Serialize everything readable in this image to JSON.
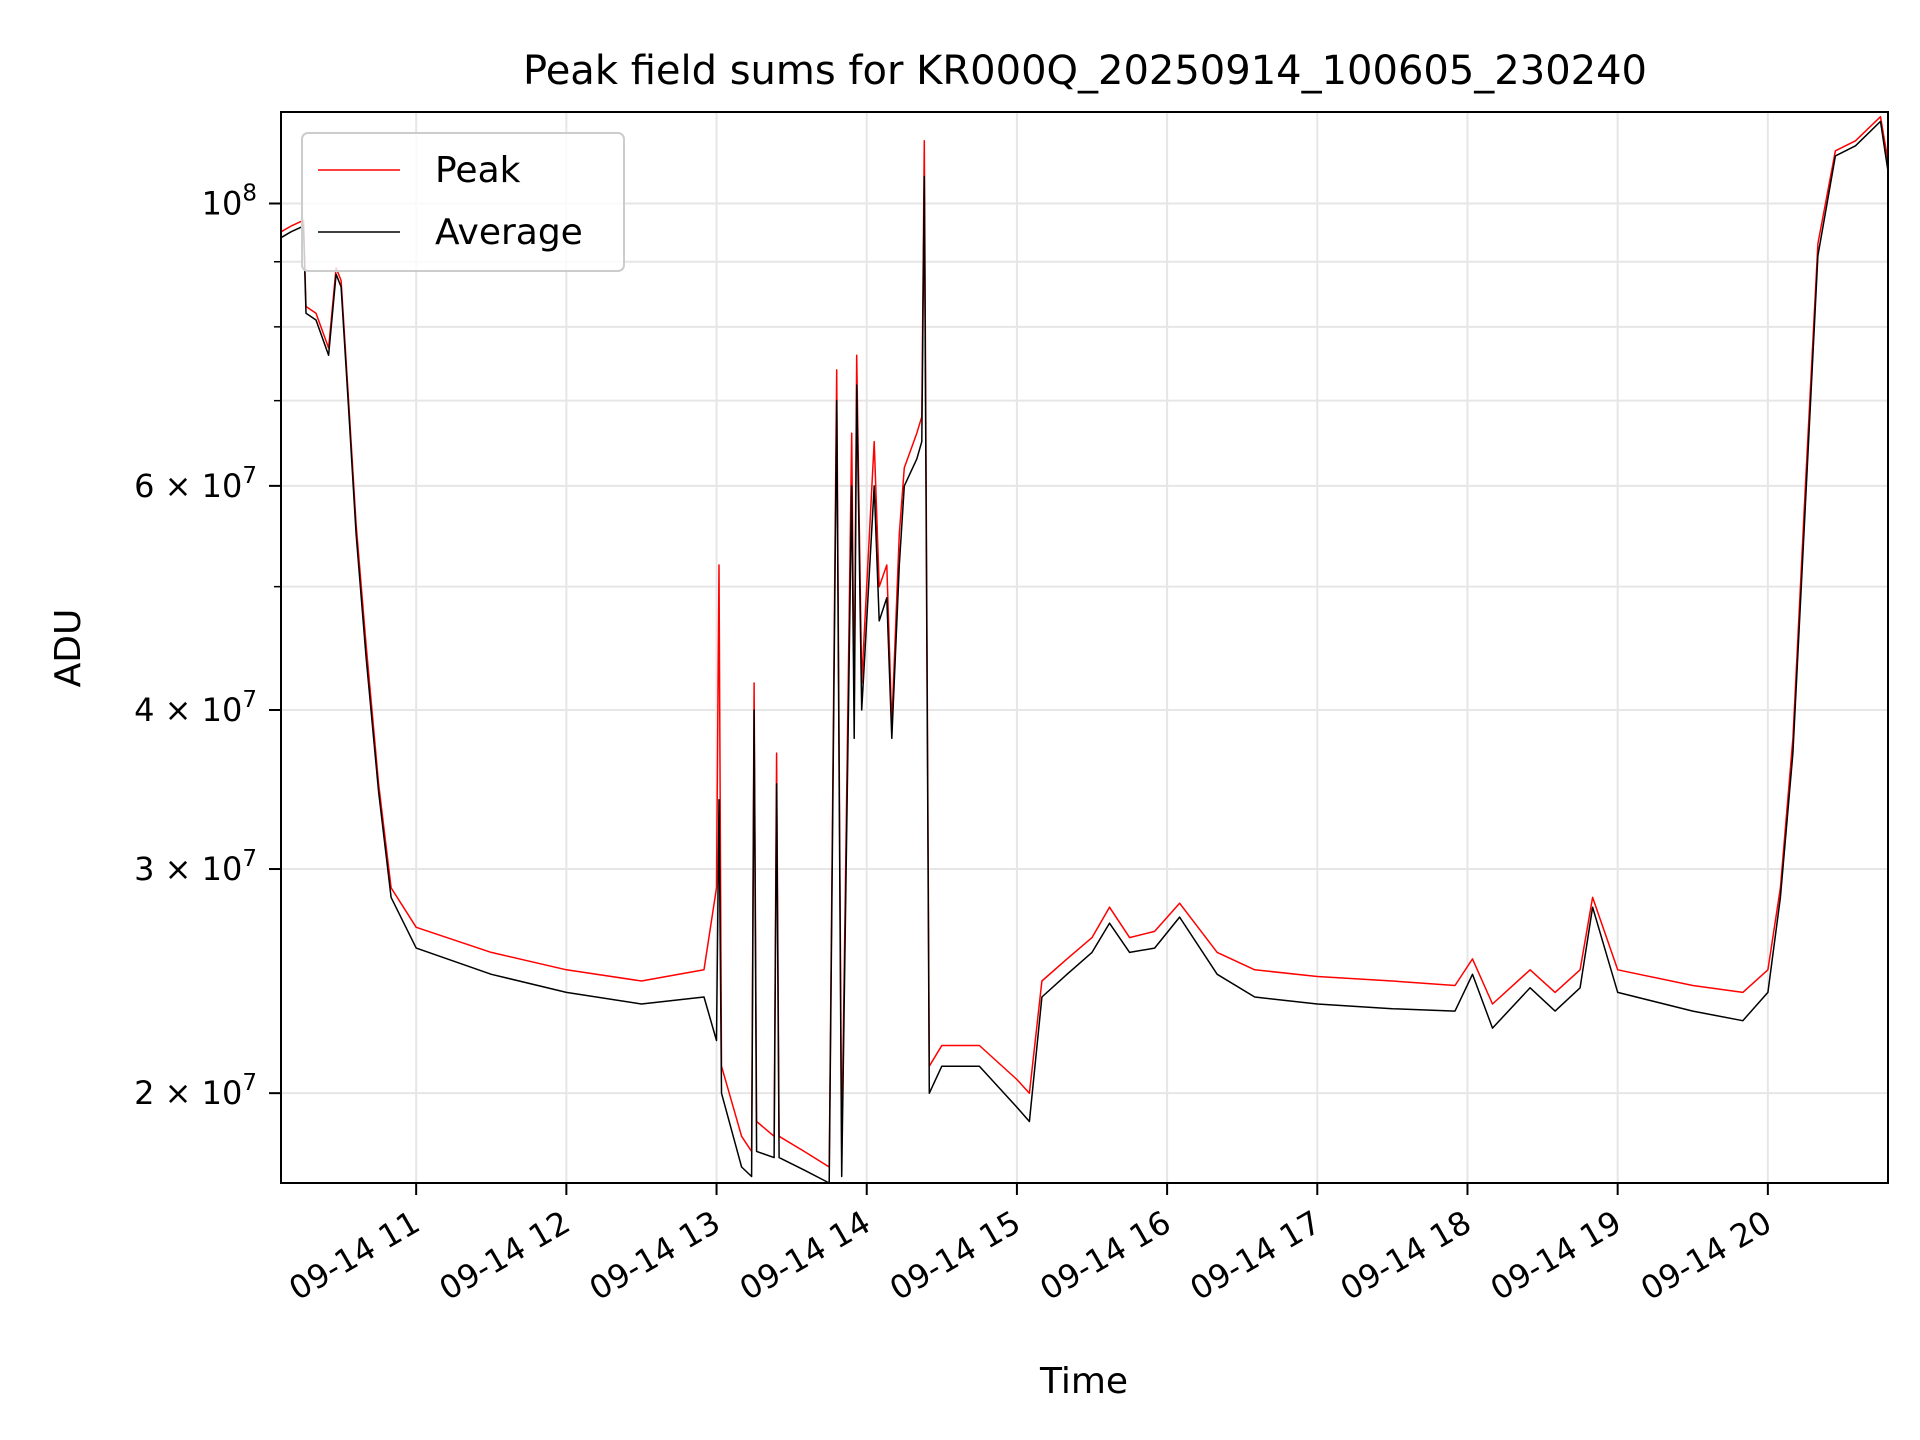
{
  "chart_data": {
    "type": "line",
    "title": "Peak field sums for KR000Q_20250914_100605_230240",
    "xlabel": "Time",
    "ylabel": "ADU",
    "x_axis": "time",
    "y_scale": "log",
    "xlim": [
      "2025-09-14 10:06",
      "2025-09-14 20:48"
    ],
    "ylim": [
      17000000,
      118000000
    ],
    "grid": true,
    "legend_position": "upper-left",
    "x_ticks": [
      {
        "value": "2025-09-14 11:00",
        "label": "09-14 11"
      },
      {
        "value": "2025-09-14 12:00",
        "label": "09-14 12"
      },
      {
        "value": "2025-09-14 13:00",
        "label": "09-14 13"
      },
      {
        "value": "2025-09-14 14:00",
        "label": "09-14 14"
      },
      {
        "value": "2025-09-14 15:00",
        "label": "09-14 15"
      },
      {
        "value": "2025-09-14 16:00",
        "label": "09-14 16"
      },
      {
        "value": "2025-09-14 17:00",
        "label": "09-14 17"
      },
      {
        "value": "2025-09-14 18:00",
        "label": "09-14 18"
      },
      {
        "value": "2025-09-14 19:00",
        "label": "09-14 19"
      },
      {
        "value": "2025-09-14 20:00",
        "label": "09-14 20"
      }
    ],
    "y_ticks": [
      {
        "value": 20000000,
        "base": "2 × 10",
        "exp": "7"
      },
      {
        "value": 30000000,
        "base": "3 × 10",
        "exp": "7"
      },
      {
        "value": 40000000,
        "base": "4 × 10",
        "exp": "7"
      },
      {
        "value": 60000000,
        "base": "6 × 10",
        "exp": "7"
      },
      {
        "value": 100000000,
        "base": "10",
        "exp": "8"
      }
    ],
    "y_minor_ticks": [
      50000000,
      70000000,
      80000000,
      90000000
    ],
    "series": [
      {
        "name": "Peak",
        "color": "#ff0000",
        "points": [
          [
            "2025-09-14 10:06",
            95000000
          ],
          [
            "2025-09-14 10:10",
            96000000
          ],
          [
            "2025-09-14 10:15",
            97000000
          ],
          [
            "2025-09-14 10:16",
            83000000
          ],
          [
            "2025-09-14 10:20",
            82000000
          ],
          [
            "2025-09-14 10:25",
            77000000
          ],
          [
            "2025-09-14 10:28",
            89000000
          ],
          [
            "2025-09-14 10:30",
            87000000
          ],
          [
            "2025-09-14 10:33",
            70000000
          ],
          [
            "2025-09-14 10:36",
            56000000
          ],
          [
            "2025-09-14 10:40",
            45000000
          ],
          [
            "2025-09-14 10:45",
            35000000
          ],
          [
            "2025-09-14 10:50",
            29000000
          ],
          [
            "2025-09-14 11:00",
            27000000
          ],
          [
            "2025-09-14 11:30",
            25800000
          ],
          [
            "2025-09-14 12:00",
            25000000
          ],
          [
            "2025-09-14 12:30",
            24500000
          ],
          [
            "2025-09-14 12:55",
            25000000
          ],
          [
            "2025-09-14 13:00",
            29000000
          ],
          [
            "2025-09-14 13:01",
            52000000
          ],
          [
            "2025-09-14 13:02",
            21000000
          ],
          [
            "2025-09-14 13:10",
            18500000
          ],
          [
            "2025-09-14 13:14",
            18000000
          ],
          [
            "2025-09-14 13:15",
            42000000
          ],
          [
            "2025-09-14 13:16",
            19000000
          ],
          [
            "2025-09-14 13:23",
            18500000
          ],
          [
            "2025-09-14 13:24",
            37000000
          ],
          [
            "2025-09-14 13:25",
            18500000
          ],
          [
            "2025-09-14 13:35",
            18000000
          ],
          [
            "2025-09-14 13:45",
            17500000
          ],
          [
            "2025-09-14 13:48",
            74000000
          ],
          [
            "2025-09-14 13:50",
            18000000
          ],
          [
            "2025-09-14 13:54",
            66000000
          ],
          [
            "2025-09-14 13:55",
            40000000
          ],
          [
            "2025-09-14 13:56",
            76000000
          ],
          [
            "2025-09-14 13:58",
            42000000
          ],
          [
            "2025-09-14 14:03",
            65000000
          ],
          [
            "2025-09-14 14:05",
            50000000
          ],
          [
            "2025-09-14 14:08",
            52000000
          ],
          [
            "2025-09-14 14:10",
            39000000
          ],
          [
            "2025-09-14 14:13",
            55000000
          ],
          [
            "2025-09-14 14:15",
            62000000
          ],
          [
            "2025-09-14 14:20",
            66000000
          ],
          [
            "2025-09-14 14:22",
            68000000
          ],
          [
            "2025-09-14 14:23",
            112000000
          ],
          [
            "2025-09-14 14:25",
            21000000
          ],
          [
            "2025-09-14 14:30",
            21800000
          ],
          [
            "2025-09-14 14:45",
            21800000
          ],
          [
            "2025-09-14 15:00",
            20500000
          ],
          [
            "2025-09-14 15:05",
            20000000
          ],
          [
            "2025-09-14 15:10",
            24500000
          ],
          [
            "2025-09-14 15:20",
            25500000
          ],
          [
            "2025-09-14 15:30",
            26500000
          ],
          [
            "2025-09-14 15:37",
            28000000
          ],
          [
            "2025-09-14 15:45",
            26500000
          ],
          [
            "2025-09-14 15:55",
            26800000
          ],
          [
            "2025-09-14 16:05",
            28200000
          ],
          [
            "2025-09-14 16:20",
            25800000
          ],
          [
            "2025-09-14 16:35",
            25000000
          ],
          [
            "2025-09-14 17:00",
            24700000
          ],
          [
            "2025-09-14 17:30",
            24500000
          ],
          [
            "2025-09-14 17:55",
            24300000
          ],
          [
            "2025-09-14 18:02",
            25500000
          ],
          [
            "2025-09-14 18:10",
            23500000
          ],
          [
            "2025-09-14 18:25",
            25000000
          ],
          [
            "2025-09-14 18:35",
            24000000
          ],
          [
            "2025-09-14 18:45",
            25000000
          ],
          [
            "2025-09-14 18:50",
            28500000
          ],
          [
            "2025-09-14 19:00",
            25000000
          ],
          [
            "2025-09-14 19:30",
            24300000
          ],
          [
            "2025-09-14 19:50",
            24000000
          ],
          [
            "2025-09-14 20:00",
            25000000
          ],
          [
            "2025-09-14 20:05",
            29000000
          ],
          [
            "2025-09-14 20:10",
            38000000
          ],
          [
            "2025-09-14 20:15",
            60000000
          ],
          [
            "2025-09-14 20:20",
            93000000
          ],
          [
            "2025-09-14 20:27",
            110000000
          ],
          [
            "2025-09-14 20:35",
            112000000
          ],
          [
            "2025-09-14 20:45",
            117000000
          ],
          [
            "2025-09-14 20:48",
            108000000
          ]
        ]
      },
      {
        "name": "Average",
        "color": "#000000",
        "points": [
          [
            "2025-09-14 10:06",
            94000000
          ],
          [
            "2025-09-14 10:10",
            95000000
          ],
          [
            "2025-09-14 10:15",
            96000000
          ],
          [
            "2025-09-14 10:16",
            82000000
          ],
          [
            "2025-09-14 10:20",
            81000000
          ],
          [
            "2025-09-14 10:25",
            76000000
          ],
          [
            "2025-09-14 10:28",
            88000000
          ],
          [
            "2025-09-14 10:30",
            86000000
          ],
          [
            "2025-09-14 10:33",
            69000000
          ],
          [
            "2025-09-14 10:36",
            55000000
          ],
          [
            "2025-09-14 10:40",
            44000000
          ],
          [
            "2025-09-14 10:45",
            34500000
          ],
          [
            "2025-09-14 10:50",
            28500000
          ],
          [
            "2025-09-14 11:00",
            26000000
          ],
          [
            "2025-09-14 11:30",
            24800000
          ],
          [
            "2025-09-14 12:00",
            24000000
          ],
          [
            "2025-09-14 12:30",
            23500000
          ],
          [
            "2025-09-14 12:55",
            23800000
          ],
          [
            "2025-09-14 13:00",
            22000000
          ],
          [
            "2025-09-14 13:01",
            34000000
          ],
          [
            "2025-09-14 13:02",
            20000000
          ],
          [
            "2025-09-14 13:10",
            17500000
          ],
          [
            "2025-09-14 13:14",
            17200000
          ],
          [
            "2025-09-14 13:15",
            40000000
          ],
          [
            "2025-09-14 13:16",
            18000000
          ],
          [
            "2025-09-14 13:23",
            17800000
          ],
          [
            "2025-09-14 13:24",
            35000000
          ],
          [
            "2025-09-14 13:25",
            17800000
          ],
          [
            "2025-09-14 13:35",
            17400000
          ],
          [
            "2025-09-14 13:45",
            17000000
          ],
          [
            "2025-09-14 13:48",
            70000000
          ],
          [
            "2025-09-14 13:50",
            17200000
          ],
          [
            "2025-09-14 13:54",
            60000000
          ],
          [
            "2025-09-14 13:55",
            38000000
          ],
          [
            "2025-09-14 13:56",
            72000000
          ],
          [
            "2025-09-14 13:58",
            40000000
          ],
          [
            "2025-09-14 14:03",
            60000000
          ],
          [
            "2025-09-14 14:05",
            47000000
          ],
          [
            "2025-09-14 14:08",
            49000000
          ],
          [
            "2025-09-14 14:10",
            38000000
          ],
          [
            "2025-09-14 14:13",
            52000000
          ],
          [
            "2025-09-14 14:15",
            60000000
          ],
          [
            "2025-09-14 14:20",
            63000000
          ],
          [
            "2025-09-14 14:22",
            65000000
          ],
          [
            "2025-09-14 14:23",
            105000000
          ],
          [
            "2025-09-14 14:25",
            20000000
          ],
          [
            "2025-09-14 14:30",
            21000000
          ],
          [
            "2025-09-14 14:45",
            21000000
          ],
          [
            "2025-09-14 15:00",
            19500000
          ],
          [
            "2025-09-14 15:05",
            19000000
          ],
          [
            "2025-09-14 15:10",
            23800000
          ],
          [
            "2025-09-14 15:20",
            24800000
          ],
          [
            "2025-09-14 15:30",
            25800000
          ],
          [
            "2025-09-14 15:37",
            27200000
          ],
          [
            "2025-09-14 15:45",
            25800000
          ],
          [
            "2025-09-14 15:55",
            26000000
          ],
          [
            "2025-09-14 16:05",
            27500000
          ],
          [
            "2025-09-14 16:20",
            24800000
          ],
          [
            "2025-09-14 16:35",
            23800000
          ],
          [
            "2025-09-14 17:00",
            23500000
          ],
          [
            "2025-09-14 17:30",
            23300000
          ],
          [
            "2025-09-14 17:55",
            23200000
          ],
          [
            "2025-09-14 18:02",
            24800000
          ],
          [
            "2025-09-14 18:10",
            22500000
          ],
          [
            "2025-09-14 18:25",
            24200000
          ],
          [
            "2025-09-14 18:35",
            23200000
          ],
          [
            "2025-09-14 18:45",
            24200000
          ],
          [
            "2025-09-14 18:50",
            28000000
          ],
          [
            "2025-09-14 19:00",
            24000000
          ],
          [
            "2025-09-14 19:30",
            23200000
          ],
          [
            "2025-09-14 19:50",
            22800000
          ],
          [
            "2025-09-14 20:00",
            24000000
          ],
          [
            "2025-09-14 20:05",
            28500000
          ],
          [
            "2025-09-14 20:10",
            37000000
          ],
          [
            "2025-09-14 20:15",
            58000000
          ],
          [
            "2025-09-14 20:20",
            91000000
          ],
          [
            "2025-09-14 20:27",
            109000000
          ],
          [
            "2025-09-14 20:35",
            111000000
          ],
          [
            "2025-09-14 20:45",
            116000000
          ],
          [
            "2025-09-14 20:48",
            106000000
          ]
        ]
      }
    ]
  }
}
